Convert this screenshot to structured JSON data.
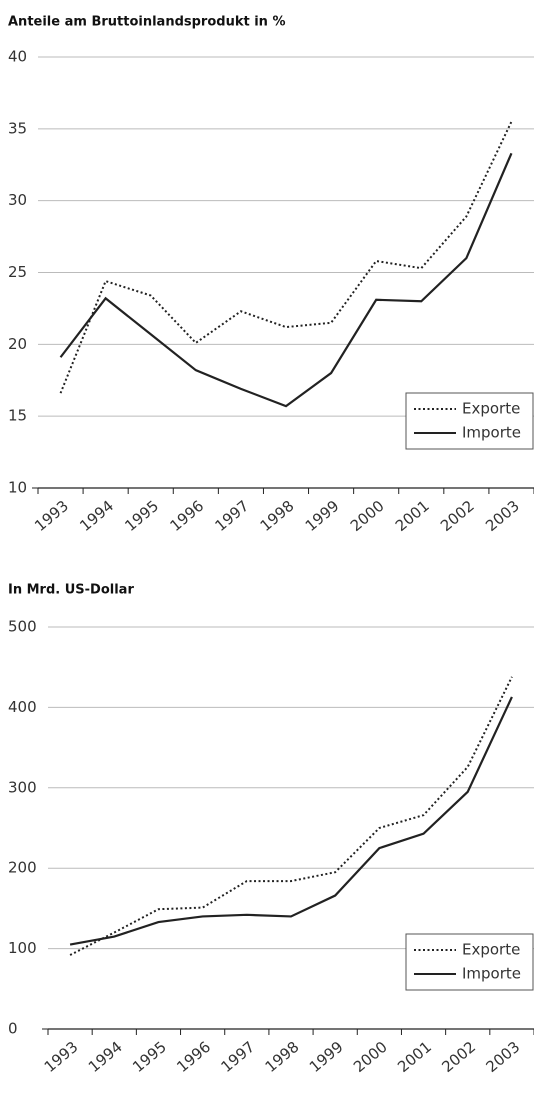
{
  "chart_data": [
    {
      "type": "line",
      "title": "Anteile am Bruttoinlandsprodukt in %",
      "categories": [
        "1993",
        "1994",
        "1995",
        "1996",
        "1997",
        "1998",
        "1999",
        "2000",
        "2001",
        "2002",
        "2003"
      ],
      "series": [
        {
          "name": "Exporte",
          "color": "#222222",
          "style": "dotted",
          "values": [
            16.6,
            24.4,
            23.4,
            20.1,
            22.3,
            21.2,
            21.5,
            25.8,
            25.3,
            28.9,
            35.5
          ]
        },
        {
          "name": "Importe",
          "color": "#222222",
          "style": "solid",
          "values": [
            19.1,
            23.2,
            20.7,
            18.2,
            16.9,
            15.7,
            18.0,
            23.1,
            23.0,
            26.0,
            33.3
          ]
        }
      ],
      "ylim": [
        10,
        40
      ],
      "yticks": [
        10,
        15,
        20,
        25,
        30,
        35,
        40
      ],
      "grid": true,
      "legend": "lower right"
    },
    {
      "type": "line",
      "title": "In Mrd. US-Dollar",
      "categories": [
        "1993",
        "1994",
        "1995",
        "1996",
        "1997",
        "1998",
        "1999",
        "2000",
        "2001",
        "2002",
        "2003"
      ],
      "series": [
        {
          "name": "Exporte",
          "color": "#222222",
          "style": "dotted",
          "values": [
            92,
            120,
            149,
            151,
            184,
            184,
            195,
            250,
            266,
            326,
            438
          ]
        },
        {
          "name": "Importe",
          "color": "#222222",
          "style": "solid",
          "values": [
            105,
            115,
            133,
            140,
            142,
            140,
            166,
            225,
            243,
            295,
            413
          ]
        }
      ],
      "ylim": [
        0,
        500
      ],
      "yticks": [
        0,
        100,
        200,
        300,
        400,
        500
      ],
      "grid": true,
      "legend": "lower right"
    }
  ]
}
